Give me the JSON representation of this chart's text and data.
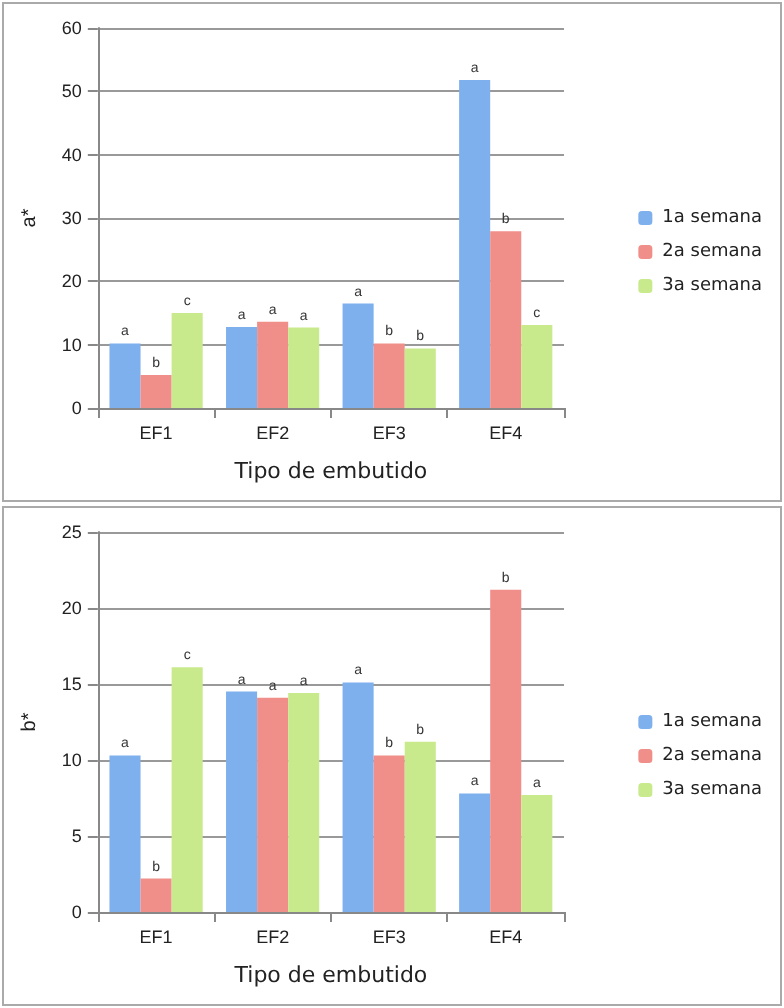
{
  "chart_data": [
    {
      "type": "bar",
      "xlabel": "Tipo de embutido",
      "ylabel": "a*",
      "categories": [
        "EF1",
        "EF2",
        "EF3",
        "EF4"
      ],
      "series": [
        {
          "name": "1a semana",
          "color": "#7fb0ee",
          "values": [
            10.2,
            12.8,
            16.5,
            51.8
          ],
          "value_labels": [
            "a",
            "a",
            "a",
            "a"
          ]
        },
        {
          "name": "2a semana",
          "color": "#f08f8a",
          "values": [
            5.2,
            13.6,
            10.2,
            27.9
          ],
          "value_labels": [
            "b",
            "a",
            "b",
            "b"
          ]
        },
        {
          "name": "3a semana",
          "color": "#c9ea8c",
          "values": [
            15,
            12.7,
            9.4,
            13.1
          ],
          "value_labels": [
            "c",
            "a",
            "b",
            "c"
          ]
        }
      ],
      "ylim": [
        0,
        60
      ],
      "yticks": [
        0,
        10,
        20,
        30,
        40,
        50,
        60
      ],
      "grid": "y",
      "legend": "right"
    },
    {
      "type": "bar",
      "xlabel": "Tipo de embutido",
      "ylabel": "b*",
      "categories": [
        "EF1",
        "EF2",
        "EF3",
        "EF4"
      ],
      "series": [
        {
          "name": "1a semana",
          "color": "#7fb0ee",
          "values": [
            10.3,
            14.5,
            15.1,
            7.8
          ],
          "value_labels": [
            "a",
            "a",
            "a",
            "a"
          ]
        },
        {
          "name": "2a semana",
          "color": "#f08f8a",
          "values": [
            2.2,
            14.1,
            10.3,
            21.2
          ],
          "value_labels": [
            "b",
            "a",
            "b",
            "b"
          ]
        },
        {
          "name": "3a semana",
          "color": "#c9ea8c",
          "values": [
            16.1,
            14.4,
            11.2,
            7.7
          ],
          "value_labels": [
            "c",
            "a",
            "b",
            "a"
          ]
        }
      ],
      "ylim": [
        0,
        25
      ],
      "yticks": [
        0,
        5,
        10,
        15,
        20,
        25
      ],
      "grid": "y",
      "legend": "right"
    }
  ]
}
